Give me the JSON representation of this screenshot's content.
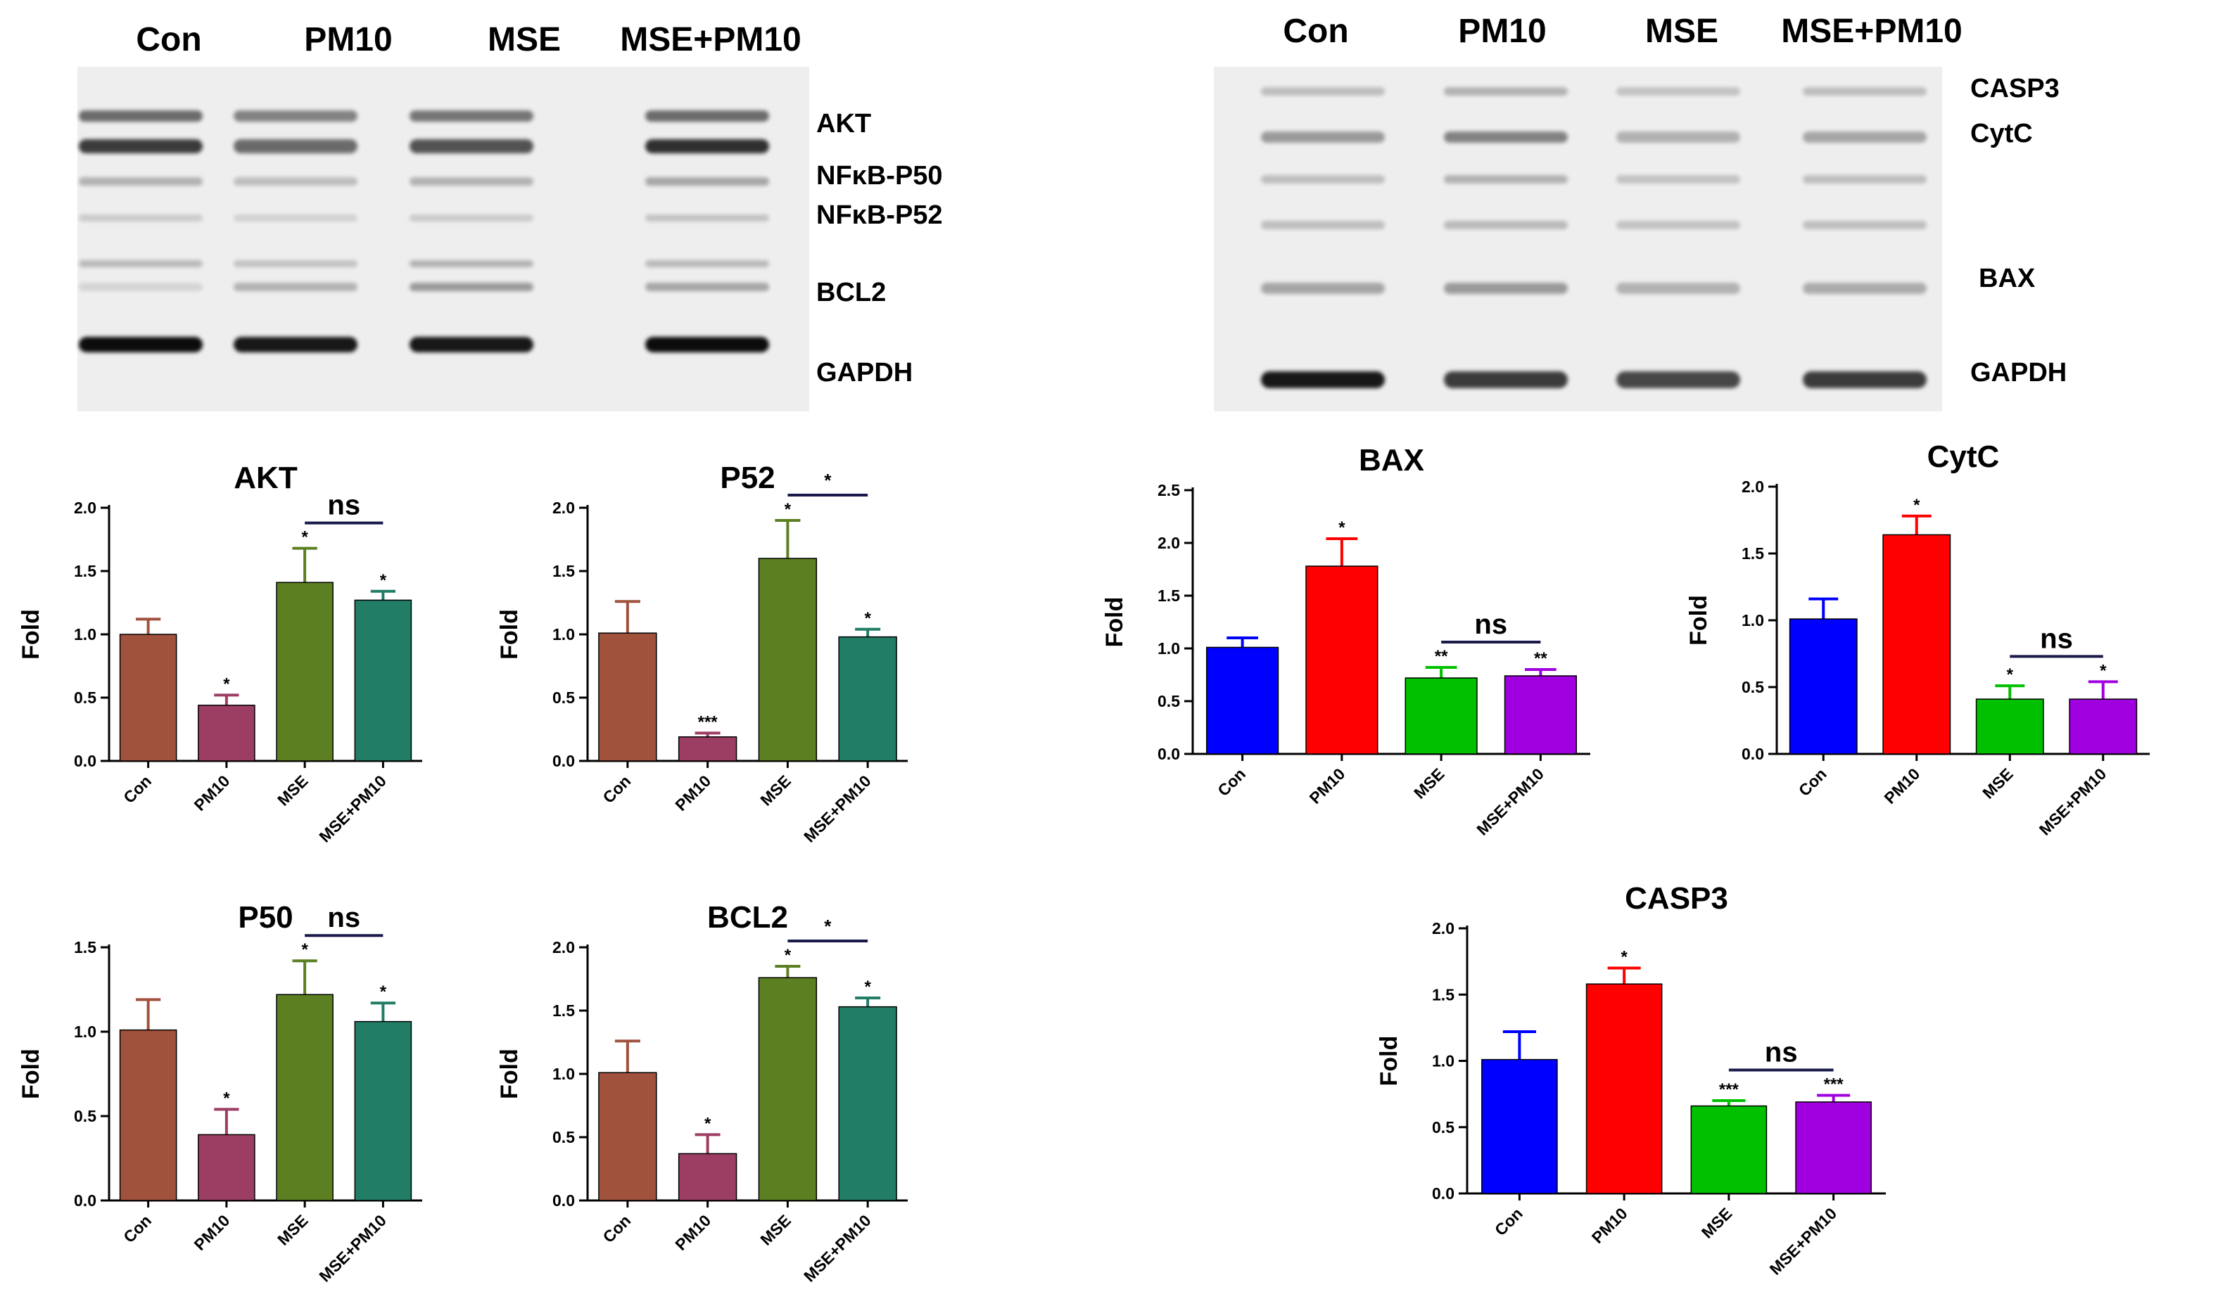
{
  "gels": [
    {
      "lanes": [
        "Con",
        "PM10",
        "MSE",
        "MSE+PM10"
      ],
      "band_labels": [
        "AKT",
        "NFκB-P50",
        "NFκB-P52",
        "BCL2",
        "GAPDH"
      ]
    },
    {
      "lanes": [
        "Con",
        "PM10",
        "MSE",
        "MSE+PM10"
      ],
      "band_labels": [
        "CASP3",
        "CytC",
        "BAX",
        "GAPDH"
      ]
    }
  ],
  "colors": {
    "set1": [
      "#A0523D",
      "#9C3D63",
      "#5C7F22",
      "#217D66"
    ],
    "set2": [
      "#0000FF",
      "#FF0000",
      "#00C000",
      "#A000E0"
    ]
  },
  "chart_data": [
    {
      "type": "bar",
      "title": "AKT",
      "ylabel": "Fold",
      "categories": [
        "Con",
        "PM10",
        "MSE",
        "MSE+PM10"
      ],
      "values": [
        1.0,
        0.44,
        1.41,
        1.27
      ],
      "errors": [
        0.12,
        0.08,
        0.27,
        0.07
      ],
      "sig": [
        "",
        "*",
        "*",
        "*"
      ],
      "ylim": [
        0,
        2.0
      ],
      "yticks": [
        "0.0",
        "0.5",
        "1.0",
        "1.5",
        "2.0"
      ],
      "bracket": {
        "label": "ns",
        "from": 2,
        "to": 3
      },
      "palette": "set1"
    },
    {
      "type": "bar",
      "title": "P52",
      "ylabel": "Fold",
      "categories": [
        "Con",
        "PM10",
        "MSE",
        "MSE+PM10"
      ],
      "values": [
        1.01,
        0.19,
        1.6,
        0.98
      ],
      "errors": [
        0.25,
        0.03,
        0.3,
        0.06
      ],
      "sig": [
        "",
        "***",
        "*",
        "*"
      ],
      "ylim": [
        0,
        2.0
      ],
      "yticks": [
        "0.0",
        "0.5",
        "1.0",
        "1.5",
        "2.0"
      ],
      "bracket": {
        "label": "*",
        "from": 2,
        "to": 3
      },
      "palette": "set1"
    },
    {
      "type": "bar",
      "title": "P50",
      "ylabel": "Fold",
      "categories": [
        "Con",
        "PM10",
        "MSE",
        "MSE+PM10"
      ],
      "values": [
        1.01,
        0.39,
        1.22,
        1.06
      ],
      "errors": [
        0.18,
        0.15,
        0.2,
        0.11
      ],
      "sig": [
        "",
        "*",
        "*",
        "*"
      ],
      "ylim": [
        0,
        1.5
      ],
      "yticks": [
        "0.0",
        "0.5",
        "1.0",
        "1.5"
      ],
      "bracket": {
        "label": "ns",
        "from": 2,
        "to": 3
      },
      "palette": "set1"
    },
    {
      "type": "bar",
      "title": "BCL2",
      "ylabel": "Fold",
      "categories": [
        "Con",
        "PM10",
        "MSE",
        "MSE+PM10"
      ],
      "values": [
        1.01,
        0.37,
        1.76,
        1.53
      ],
      "errors": [
        0.25,
        0.15,
        0.09,
        0.07
      ],
      "sig": [
        "",
        "*",
        "*",
        "*"
      ],
      "ylim": [
        0,
        2.0
      ],
      "yticks": [
        "0.0",
        "0.5",
        "1.0",
        "1.5",
        "2.0"
      ],
      "bracket": {
        "label": "*",
        "from": 2,
        "to": 3
      },
      "palette": "set1"
    },
    {
      "type": "bar",
      "title": "BAX",
      "ylabel": "Fold",
      "categories": [
        "Con",
        "PM10",
        "MSE",
        "MSE+PM10"
      ],
      "values": [
        1.01,
        1.78,
        0.72,
        0.74
      ],
      "errors": [
        0.09,
        0.26,
        0.1,
        0.06
      ],
      "sig": [
        "",
        "*",
        "**",
        "**"
      ],
      "ylim": [
        0,
        2.5
      ],
      "yticks": [
        "0.0",
        "0.5",
        "1.0",
        "1.5",
        "2.0",
        "2.5"
      ],
      "bracket": {
        "label": "ns",
        "from": 2,
        "to": 3
      },
      "palette": "set2"
    },
    {
      "type": "bar",
      "title": "CytC",
      "ylabel": "Fold",
      "categories": [
        "Con",
        "PM10",
        "MSE",
        "MSE+PM10"
      ],
      "values": [
        1.01,
        1.64,
        0.41,
        0.41
      ],
      "errors": [
        0.15,
        0.14,
        0.1,
        0.13
      ],
      "sig": [
        "",
        "*",
        "*",
        "*"
      ],
      "ylim": [
        0,
        2.0
      ],
      "yticks": [
        "0.0",
        "0.5",
        "1.0",
        "1.5",
        "2.0"
      ],
      "bracket": {
        "label": "ns",
        "from": 2,
        "to": 3
      },
      "palette": "set2"
    },
    {
      "type": "bar",
      "title": "CASP3",
      "ylabel": "Fold",
      "categories": [
        "Con",
        "PM10",
        "MSE",
        "MSE+PM10"
      ],
      "values": [
        1.01,
        1.58,
        0.66,
        0.69
      ],
      "errors": [
        0.21,
        0.12,
        0.04,
        0.05
      ],
      "sig": [
        "",
        "*",
        "***",
        "***"
      ],
      "ylim": [
        0,
        2.0
      ],
      "yticks": [
        "0.0",
        "0.5",
        "1.0",
        "1.5",
        "2.0"
      ],
      "bracket": {
        "label": "ns",
        "from": 2,
        "to": 3
      },
      "palette": "set2"
    }
  ]
}
